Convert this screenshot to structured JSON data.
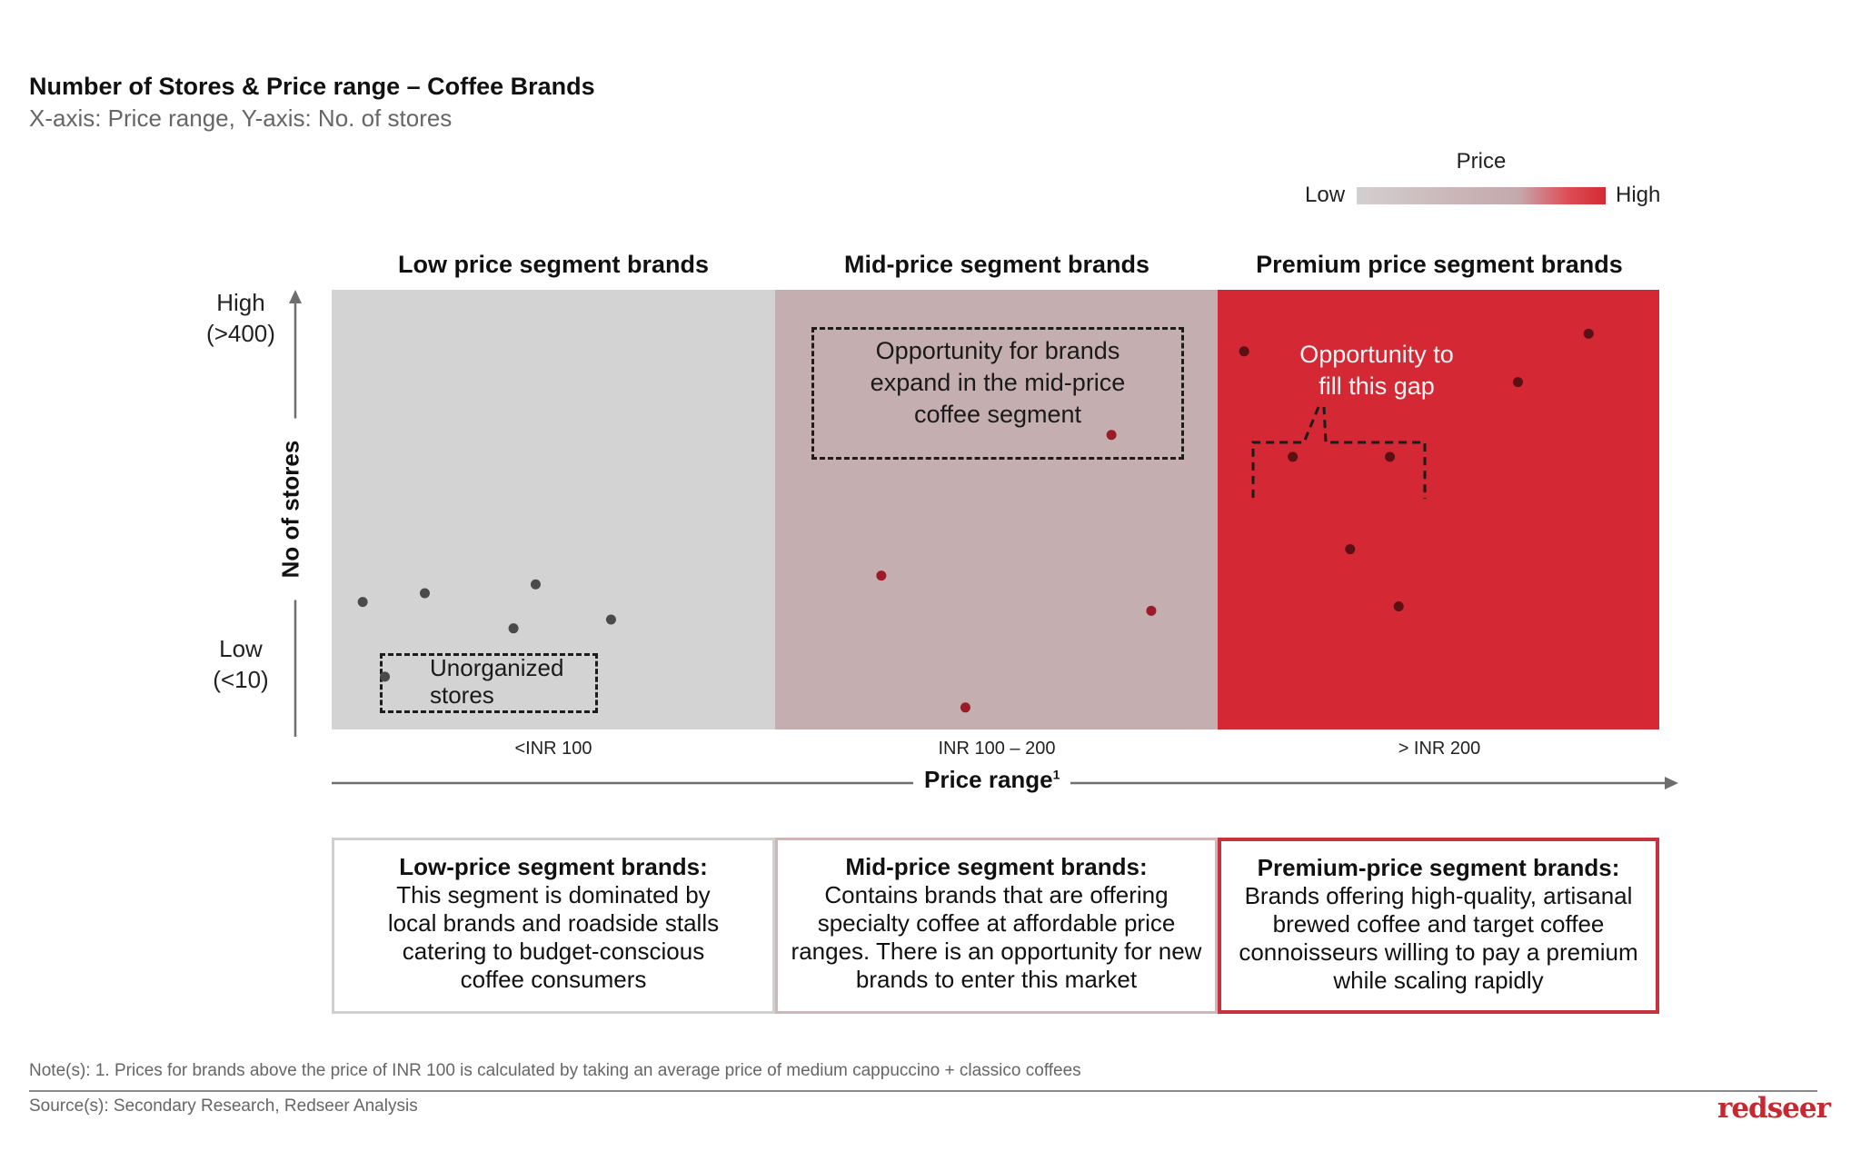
{
  "header": {
    "title": "Number of Stores & Price range – Coffee Brands",
    "subtitle": "X-axis: Price range, Y-axis: No. of stores"
  },
  "legend": {
    "title": "Price",
    "low_label": "Low",
    "high_label": "High",
    "gradient_colors": [
      "#d3cfd0",
      "#c4a9ac",
      "#d42a33"
    ]
  },
  "segments": [
    {
      "heading": "Low price segment brands",
      "x_tick": "<INR 100",
      "color": "#d3d3d3",
      "dot_color": "#4a4a4a",
      "desc_title": "Low-price segment brands:",
      "desc_text": "This segment is dominated by local brands and roadside stalls catering to budget-conscious coffee consumers",
      "border_color": "#cfcfcf"
    },
    {
      "heading": "Mid-price segment brands",
      "x_tick": "INR 100 – 200",
      "color": "#c4aeb0",
      "dot_color": "#9b1b27",
      "desc_title": "Mid-price segment brands:",
      "desc_text": "Contains brands that are offering specialty coffee at affordable price ranges. There is an opportunity for new brands to enter this market",
      "border_color": "#cdb7b9"
    },
    {
      "heading": "Premium price segment brands",
      "x_tick": "> INR 200",
      "color": "#d42834",
      "dot_color": "#5a1015",
      "desc_title": "Premium-price segment brands:",
      "desc_text": "Brands offering high-quality, artisanal brewed coffee and target coffee connoisseurs willing to pay a premium while scaling rapidly",
      "border_color": "#c8323c"
    }
  ],
  "axes": {
    "y_label": "No of stores",
    "y_high": "High",
    "y_high_sub": "(>400)",
    "y_low": "Low",
    "y_low_sub": "(<10)",
    "x_label": "Price range",
    "x_label_sup": "1"
  },
  "annotations": {
    "unorganized": "Unorganized stores",
    "mid_opportunity": "Opportunity for brands expand in the mid-price coffee segment",
    "premium_opportunity": "Opportunity to fill this gap"
  },
  "chart_data": {
    "type": "scatter",
    "title": "Number of Stores & Price range – Coffee Brands",
    "subtitle": "X-axis: Price range, Y-axis: No. of stores",
    "xlabel": "Price range",
    "ylabel": "No of stores",
    "x_categories": [
      "<INR 100",
      "INR 100 – 200",
      "> INR 200"
    ],
    "y_scale": "qualitative: Low (<10) to High (>400), values as relative position 0–1",
    "x_scale": "relative position 0–1 within each segment",
    "grid": false,
    "legend": "top-right",
    "series": [
      {
        "name": "Low price segment brands",
        "segment": 0,
        "points": [
          {
            "x": 0.07,
            "y": 0.29
          },
          {
            "x": 0.21,
            "y": 0.31
          },
          {
            "x": 0.41,
            "y": 0.23
          },
          {
            "x": 0.46,
            "y": 0.33
          },
          {
            "x": 0.63,
            "y": 0.25
          }
        ]
      },
      {
        "name": "Unorganized stores",
        "segment": 0,
        "points": [
          {
            "x": 0.12,
            "y": 0.12
          }
        ]
      },
      {
        "name": "Mid-price segment brands",
        "segment": 1,
        "points": [
          {
            "x": 0.24,
            "y": 0.35
          },
          {
            "x": 0.43,
            "y": 0.05
          },
          {
            "x": 0.76,
            "y": 0.67
          },
          {
            "x": 0.85,
            "y": 0.27
          }
        ]
      },
      {
        "name": "Premium price segment brands",
        "segment": 2,
        "points": [
          {
            "x": 0.06,
            "y": 0.86
          },
          {
            "x": 0.17,
            "y": 0.62
          },
          {
            "x": 0.3,
            "y": 0.41
          },
          {
            "x": 0.39,
            "y": 0.62
          },
          {
            "x": 0.41,
            "y": 0.28
          },
          {
            "x": 0.68,
            "y": 0.79
          },
          {
            "x": 0.84,
            "y": 0.9
          }
        ]
      }
    ]
  },
  "footer": {
    "note": "Note(s): 1. Prices for brands above the price of INR 100 is calculated by taking an average price of medium cappuccino + classico coffees",
    "source": "Source(s): Secondary Research, Redseer Analysis",
    "logo": "redseer"
  }
}
